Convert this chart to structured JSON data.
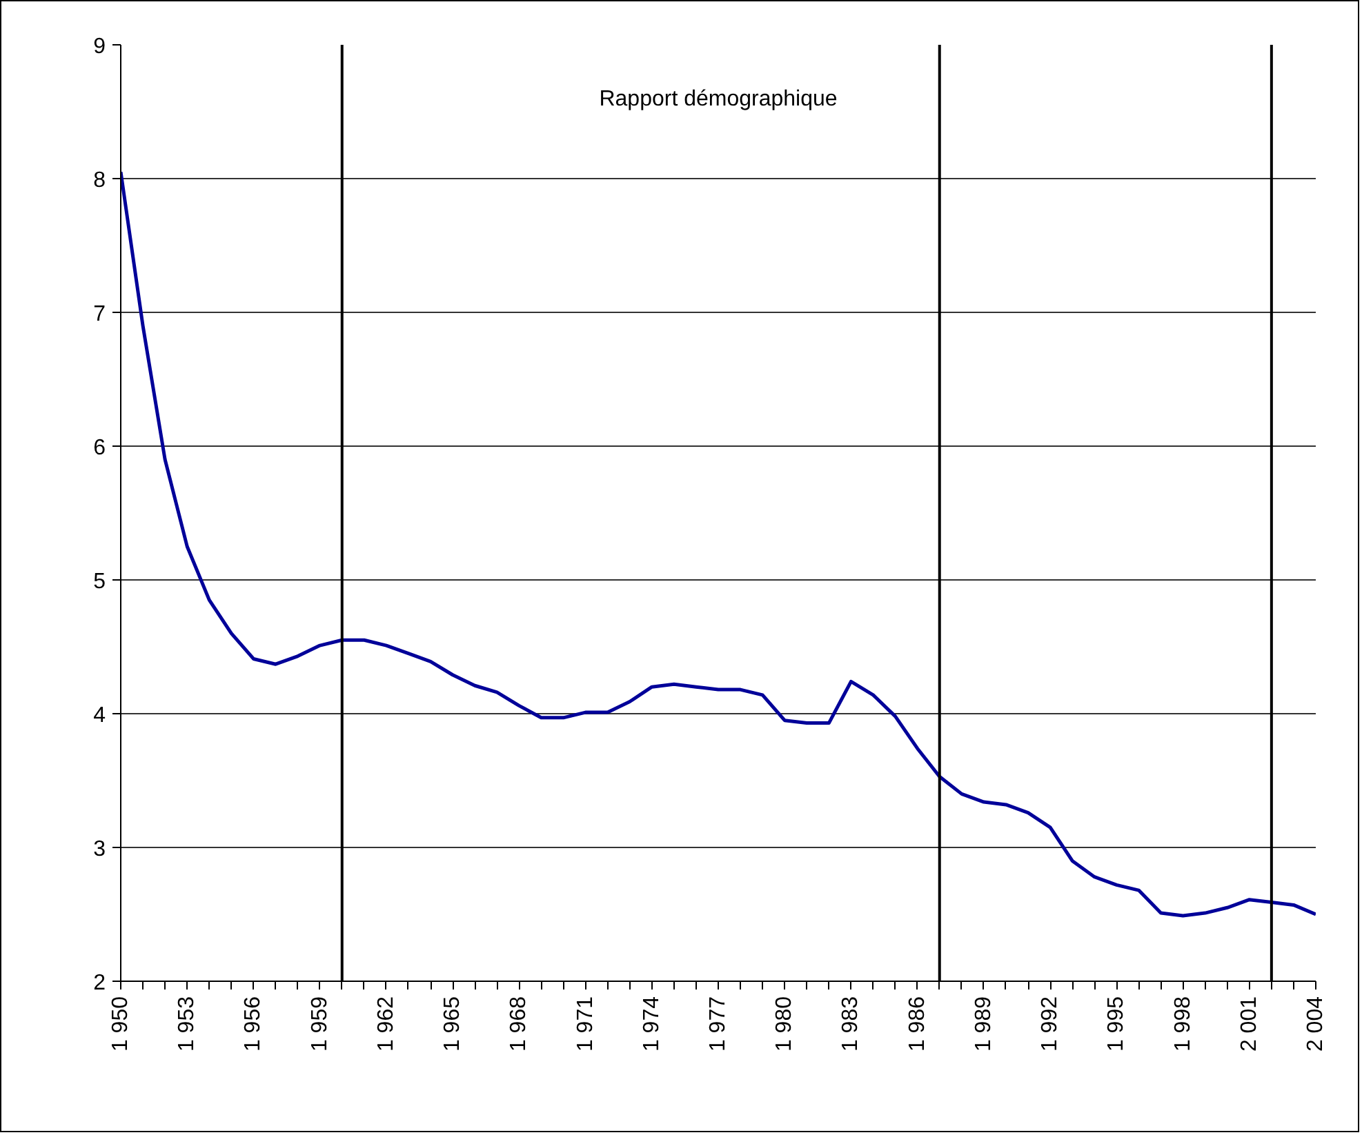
{
  "chart_data": {
    "type": "line",
    "title": "Rapport démographique",
    "x": [
      1950,
      1951,
      1952,
      1953,
      1954,
      1955,
      1956,
      1957,
      1958,
      1959,
      1960,
      1961,
      1962,
      1963,
      1964,
      1965,
      1966,
      1967,
      1968,
      1969,
      1970,
      1971,
      1972,
      1973,
      1974,
      1975,
      1976,
      1977,
      1978,
      1979,
      1980,
      1981,
      1982,
      1983,
      1984,
      1985,
      1986,
      1987,
      1988,
      1989,
      1990,
      1991,
      1992,
      1993,
      1994,
      1995,
      1996,
      1997,
      1998,
      1999,
      2000,
      2001,
      2002,
      2003,
      2004
    ],
    "series": [
      {
        "color": "#000099",
        "values": [
          8.05,
          6.9,
          5.9,
          5.25,
          4.85,
          4.6,
          4.41,
          4.37,
          4.43,
          4.51,
          4.55,
          4.55,
          4.51,
          4.45,
          4.39,
          4.29,
          4.21,
          4.16,
          4.06,
          3.97,
          3.97,
          4.01,
          4.01,
          4.09,
          4.2,
          4.22,
          4.2,
          4.18,
          4.18,
          4.14,
          3.95,
          3.93,
          3.93,
          4.24,
          4.14,
          3.98,
          3.74,
          3.53,
          3.4,
          3.34,
          3.32,
          3.26,
          3.15,
          2.9,
          2.78,
          2.72,
          2.68,
          2.51,
          2.49,
          2.51,
          2.55,
          2.61,
          2.59,
          2.57,
          2.5
        ]
      }
    ],
    "xlim": [
      1950,
      2004
    ],
    "ylim": [
      2,
      9
    ],
    "yticks": [
      2,
      3,
      4,
      5,
      6,
      7,
      8,
      9
    ],
    "xticks": [
      {
        "value": 1950,
        "label": "1 950"
      },
      {
        "value": 1953,
        "label": "1 953"
      },
      {
        "value": 1956,
        "label": "1 956"
      },
      {
        "value": 1959,
        "label": "1 959"
      },
      {
        "value": 1962,
        "label": "1 962"
      },
      {
        "value": 1965,
        "label": "1 965"
      },
      {
        "value": 1968,
        "label": "1 968"
      },
      {
        "value": 1971,
        "label": "1 971"
      },
      {
        "value": 1974,
        "label": "1 974"
      },
      {
        "value": 1977,
        "label": "1 977"
      },
      {
        "value": 1980,
        "label": "1 980"
      },
      {
        "value": 1983,
        "label": "1 983"
      },
      {
        "value": 1986,
        "label": "1 986"
      },
      {
        "value": 1989,
        "label": "1 989"
      },
      {
        "value": 1992,
        "label": "1 992"
      },
      {
        "value": 1995,
        "label": "1 995"
      },
      {
        "value": 1998,
        "label": "1 998"
      },
      {
        "value": 2001,
        "label": "2 001"
      },
      {
        "value": 2004,
        "label": "2 004"
      }
    ],
    "ref_lines": [
      {
        "axis": "x",
        "value": 1960,
        "color": "#000000"
      },
      {
        "axis": "x",
        "value": 1987,
        "color": "#000000"
      },
      {
        "axis": "x",
        "value": 2002,
        "color": "#000000"
      }
    ],
    "grid": "y",
    "marker": "none",
    "line_style": "solid"
  }
}
